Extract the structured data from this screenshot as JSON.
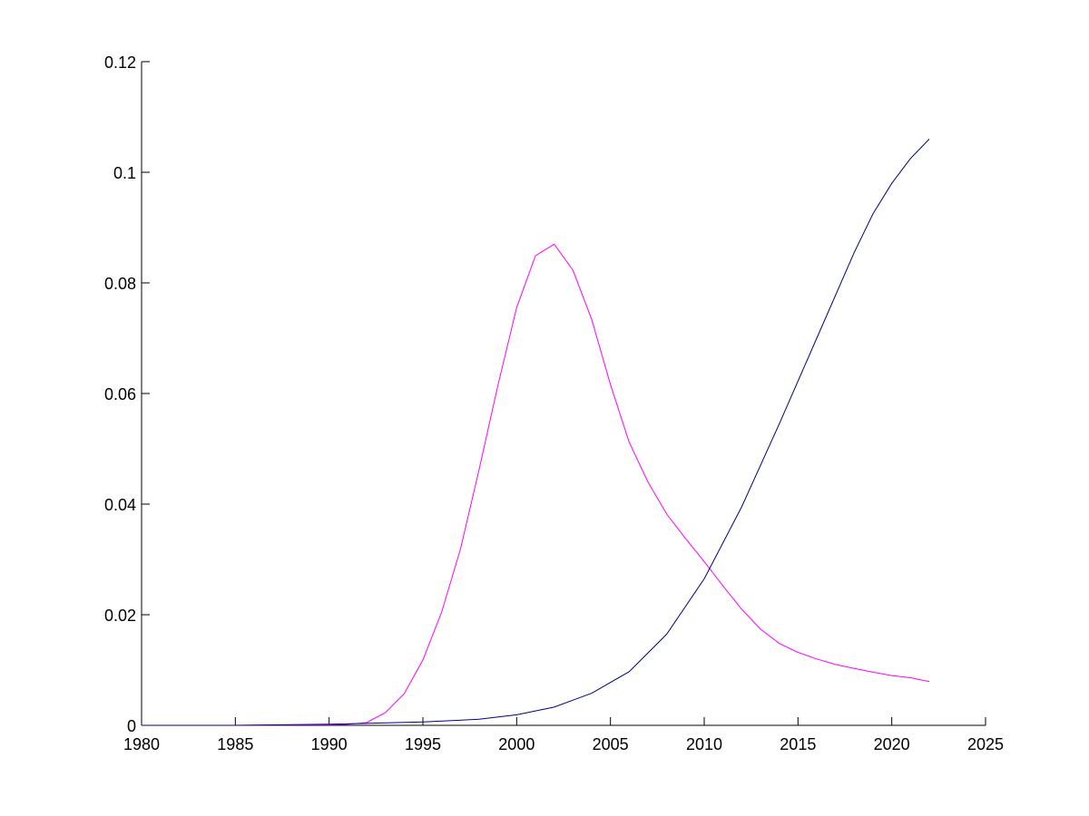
{
  "chart_data": {
    "type": "line",
    "title": "",
    "xlabel": "",
    "ylabel": "",
    "xlim": [
      1980,
      2025
    ],
    "ylim": [
      0,
      0.12
    ],
    "grid": false,
    "x_ticks": [
      1980,
      1985,
      1990,
      1995,
      2000,
      2005,
      2010,
      2015,
      2020,
      2025
    ],
    "x_tick_labels": [
      "1980",
      "1985",
      "1990",
      "1995",
      "2000",
      "2005",
      "2010",
      "2015",
      "2020",
      "2025"
    ],
    "y_ticks": [
      0,
      0.02,
      0.04,
      0.06,
      0.08,
      0.1,
      0.12
    ],
    "y_tick_labels": [
      "0",
      "0.02",
      "0.04",
      "0.06",
      "0.08",
      "0.1",
      "0.12"
    ],
    "series": [
      {
        "color": "#ff00ff",
        "x": [
          1980,
          1985,
          1990,
          1991,
          1992,
          1993,
          1994,
          1995,
          1996,
          1997,
          1998,
          1999,
          2000,
          2001,
          2002,
          2003,
          2004,
          2005,
          2006,
          2007,
          2008,
          2009,
          2010,
          2011,
          2012,
          2013,
          2014,
          2015,
          2016,
          2017,
          2018,
          2019,
          2020,
          2021,
          2022
        ],
        "y": [
          0,
          0,
          0.0001,
          0.0002,
          0.0005,
          0.0023,
          0.0057,
          0.0118,
          0.0205,
          0.0318,
          0.0463,
          0.0615,
          0.0755,
          0.0849,
          0.087,
          0.0823,
          0.0734,
          0.0616,
          0.0512,
          0.044,
          0.0382,
          0.0338,
          0.0296,
          0.0252,
          0.021,
          0.0174,
          0.0148,
          0.0132,
          0.012,
          0.011,
          0.0103,
          0.0096,
          0.009,
          0.0086,
          0.0079
        ]
      },
      {
        "color": "#000080",
        "x": [
          1980,
          1985,
          1990,
          1995,
          1998,
          2000,
          2002,
          2004,
          2006,
          2008,
          2010,
          2012,
          2014,
          2016,
          2018,
          2019,
          2020,
          2021,
          2022
        ],
        "y": [
          0,
          0,
          0.0002,
          0.0006,
          0.0011,
          0.0019,
          0.0033,
          0.0058,
          0.0097,
          0.0165,
          0.0265,
          0.0395,
          0.0545,
          0.07,
          0.0855,
          0.0925,
          0.098,
          0.1025,
          0.106
        ]
      }
    ]
  }
}
